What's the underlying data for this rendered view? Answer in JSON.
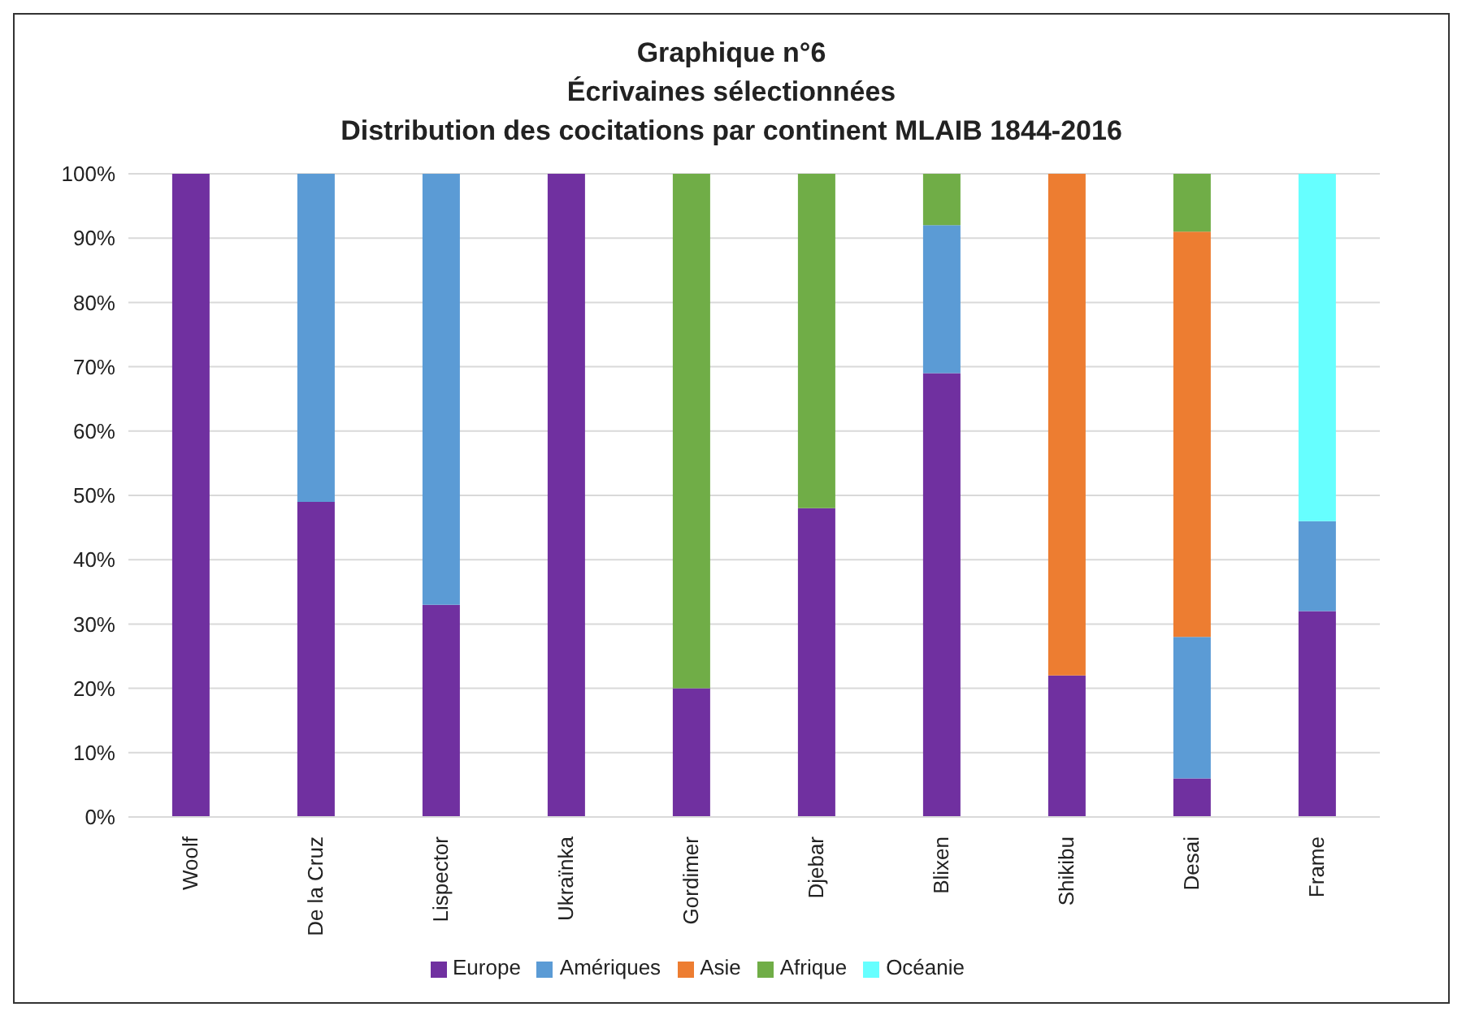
{
  "chart_data": {
    "type": "bar",
    "title": "Graphique n°6\nÉcrivaines sélectionnées\nDistribution des cocitations par continent MLAIB 1844-2016",
    "categories": [
      "Woolf",
      "De la Cruz",
      "Lispector",
      "Ukraïnka",
      "Gordimer",
      "Djebar",
      "Blixen",
      "Shikibu",
      "Desai",
      "Frame"
    ],
    "stacked": true,
    "series": [
      {
        "name": "Europe",
        "color": "#7030a0",
        "values": [
          100,
          49,
          33,
          100,
          20,
          48,
          69,
          22,
          6,
          32
        ]
      },
      {
        "name": "Amériques",
        "color": "#5b9bd5",
        "values": [
          0,
          51,
          67,
          0,
          0,
          0,
          23,
          0,
          22,
          14
        ]
      },
      {
        "name": "Asie",
        "color": "#ed7d31",
        "values": [
          0,
          0,
          0,
          0,
          0,
          0,
          0,
          78,
          63,
          0
        ]
      },
      {
        "name": "Afrique",
        "color": "#70ad47",
        "values": [
          0,
          0,
          0,
          0,
          80,
          52,
          8,
          0,
          9,
          0
        ]
      },
      {
        "name": "Océanie",
        "color": "#66ffff",
        "values": [
          0,
          0,
          0,
          0,
          0,
          0,
          0,
          0,
          0,
          54
        ]
      }
    ],
    "ylim": [
      0,
      100
    ],
    "yticks": [
      {
        "value": 0,
        "label": "0%"
      },
      {
        "value": 10,
        "label": "10%"
      },
      {
        "value": 20,
        "label": "20%"
      },
      {
        "value": 30,
        "label": "30%"
      },
      {
        "value": 40,
        "label": "40%"
      },
      {
        "value": 50,
        "label": "50%"
      },
      {
        "value": 60,
        "label": "60%"
      },
      {
        "value": 70,
        "label": "70%"
      },
      {
        "value": 80,
        "label": "80%"
      },
      {
        "value": 90,
        "label": "90%"
      },
      {
        "value": 100,
        "label": "100%"
      }
    ],
    "grid": "y",
    "legend": "bottom"
  }
}
